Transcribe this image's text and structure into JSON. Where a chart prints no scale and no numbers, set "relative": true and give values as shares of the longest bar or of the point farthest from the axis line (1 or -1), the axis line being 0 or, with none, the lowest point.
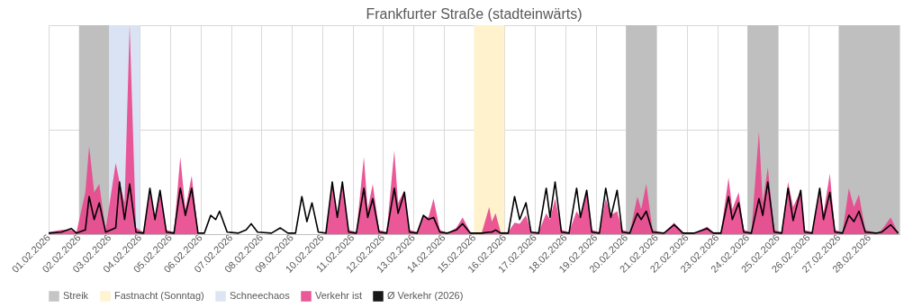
{
  "chart_data": {
    "type": "area",
    "title": "Frankfurter Straße (stadteinwärts)",
    "relative": true,
    "grid": true,
    "legend": "bottom",
    "xlim": [
      "2026-02-01",
      "2026-03-01"
    ],
    "xticks": [
      {
        "value": "2026-02-01",
        "label": "01.02.2026"
      },
      {
        "value": "2026-02-02",
        "label": "02.02.2026"
      },
      {
        "value": "2026-02-03",
        "label": "03.02.2026"
      },
      {
        "value": "2026-02-04",
        "label": "04.02.2026"
      },
      {
        "value": "2026-02-05",
        "label": "05.02.2026"
      },
      {
        "value": "2026-02-06",
        "label": "06.02.2026"
      },
      {
        "value": "2026-02-07",
        "label": "07.02.2026"
      },
      {
        "value": "2026-02-08",
        "label": "08.02.2026"
      },
      {
        "value": "2026-02-09",
        "label": "09.02.2026"
      },
      {
        "value": "2026-02-10",
        "label": "10.02.2026"
      },
      {
        "value": "2026-02-11",
        "label": "11.02.2026"
      },
      {
        "value": "2026-02-12",
        "label": "12.02.2026"
      },
      {
        "value": "2026-02-13",
        "label": "13.02.2026"
      },
      {
        "value": "2026-02-14",
        "label": "14.02.2026"
      },
      {
        "value": "2026-02-15",
        "label": "15.02.2026"
      },
      {
        "value": "2026-02-16",
        "label": "16.02.2026"
      },
      {
        "value": "2026-02-17",
        "label": "17.02.2026"
      },
      {
        "value": "2026-02-18",
        "label": "18.02.2026"
      },
      {
        "value": "2026-02-19",
        "label": "19.02.2026"
      },
      {
        "value": "2026-02-20",
        "label": "20.02.2026"
      },
      {
        "value": "2026-02-21",
        "label": "21.02.2026"
      },
      {
        "value": "2026-02-22",
        "label": "22.02.2026"
      },
      {
        "value": "2026-02-23",
        "label": "23.02.2026"
      },
      {
        "value": "2026-02-24",
        "label": "24.02.2026"
      },
      {
        "value": "2026-02-25",
        "label": "25.02.2026"
      },
      {
        "value": "2026-02-26",
        "label": "26.02.2026"
      },
      {
        "value": "2026-02-27",
        "label": "27.02.2026"
      },
      {
        "value": "2026-02-28",
        "label": "28.02.2026"
      }
    ],
    "bands": [
      {
        "axis": "x",
        "from": "2026-02-02",
        "to": "2026-02-03",
        "label": "Streik",
        "color": "#bfbfbf"
      },
      {
        "axis": "x",
        "from": "2026-02-15",
        "to": "2026-02-16",
        "label": "Fastnacht (Sonntag)",
        "color": "#fff2cc"
      },
      {
        "axis": "x",
        "from": "2026-02-03",
        "to": "2026-02-04",
        "label": "Schneechaos",
        "color": "#dae3f3"
      },
      {
        "axis": "x",
        "from": "2026-02-20",
        "to": "2026-02-21",
        "color": "#bfbfbf"
      },
      {
        "axis": "x",
        "from": "2026-02-24",
        "to": "2026-02-25",
        "color": "#bfbfbf"
      },
      {
        "axis": "x",
        "from": "2026-02-27",
        "to": "2026-03-01",
        "color": "#bfbfbf"
      }
    ],
    "x": [
      "2026-02-01T00:00",
      "2026-02-01T10:00",
      "2026-02-01T18:00",
      "2026-02-01T22:00",
      "2026-02-02T05:00",
      "2026-02-02T08:00",
      "2026-02-02T12:00",
      "2026-02-02T16:00",
      "2026-02-02T21:00",
      "2026-02-03T05:00",
      "2026-02-03T08:00",
      "2026-02-03T12:00",
      "2026-02-03T16:00",
      "2026-02-03T21:00",
      "2026-02-04T03:00",
      "2026-02-04T08:00",
      "2026-02-04T12:00",
      "2026-02-04T16:00",
      "2026-02-04T21:00",
      "2026-02-05T03:00",
      "2026-02-05T08:00",
      "2026-02-05T12:00",
      "2026-02-05T17:00",
      "2026-02-05T22:00",
      "2026-02-06T03:00",
      "2026-02-06T08:00",
      "2026-02-06T12:00",
      "2026-02-06T15:00",
      "2026-02-06T21:00",
      "2026-02-07T06:00",
      "2026-02-07T12:00",
      "2026-02-07T16:00",
      "2026-02-07T21:00",
      "2026-02-08T08:00",
      "2026-02-08T15:00",
      "2026-02-08T21:00",
      "2026-02-09T03:00",
      "2026-02-09T08:00",
      "2026-02-09T12:00",
      "2026-02-09T16:00",
      "2026-02-09T21:00",
      "2026-02-10T03:00",
      "2026-02-10T08:00",
      "2026-02-10T12:00",
      "2026-02-10T16:00",
      "2026-02-10T21:00",
      "2026-02-11T03:00",
      "2026-02-11T09:00",
      "2026-02-11T12:00",
      "2026-02-11T16:00",
      "2026-02-11T21:00",
      "2026-02-12T03:00",
      "2026-02-12T09:00",
      "2026-02-12T12:00",
      "2026-02-12T17:00",
      "2026-02-12T21:00",
      "2026-02-13T03:00",
      "2026-02-13T08:00",
      "2026-02-13T12:00",
      "2026-02-13T16:00",
      "2026-02-13T21:00",
      "2026-02-14T03:00",
      "2026-02-14T10:00",
      "2026-02-14T15:00",
      "2026-02-14T21:00",
      "2026-02-15T06:00",
      "2026-02-15T12:00",
      "2026-02-15T14:00",
      "2026-02-15T17:00",
      "2026-02-15T21:00",
      "2026-02-16T03:00",
      "2026-02-16T08:00",
      "2026-02-16T12:00",
      "2026-02-16T17:00",
      "2026-02-16T21:00",
      "2026-02-17T03:00",
      "2026-02-17T09:00",
      "2026-02-17T12:00",
      "2026-02-17T16:00",
      "2026-02-17T21:00",
      "2026-02-18T03:00",
      "2026-02-18T09:00",
      "2026-02-18T12:00",
      "2026-02-18T17:00",
      "2026-02-18T21:00",
      "2026-02-19T03:00",
      "2026-02-19T08:00",
      "2026-02-19T12:00",
      "2026-02-19T17:00",
      "2026-02-19T21:00",
      "2026-02-20T03:00",
      "2026-02-20T09:00",
      "2026-02-20T12:00",
      "2026-02-20T16:00",
      "2026-02-20T21:00",
      "2026-02-21T06:00",
      "2026-02-21T14:00",
      "2026-02-21T21:00",
      "2026-02-22T06:00",
      "2026-02-22T16:00",
      "2026-02-22T21:00",
      "2026-02-23T03:00",
      "2026-02-23T09:00",
      "2026-02-23T12:00",
      "2026-02-23T17:00",
      "2026-02-23T21:00",
      "2026-02-24T03:00",
      "2026-02-24T09:00",
      "2026-02-24T12:00",
      "2026-02-24T16:00",
      "2026-02-24T21:00",
      "2026-02-25T03:00",
      "2026-02-25T08:00",
      "2026-02-25T12:00",
      "2026-02-25T18:00",
      "2026-02-25T21:00",
      "2026-02-26T03:00",
      "2026-02-26T09:00",
      "2026-02-26T12:00",
      "2026-02-26T17:00",
      "2026-02-26T21:00",
      "2026-02-27T03:00",
      "2026-02-27T08:00",
      "2026-02-27T12:00",
      "2026-02-27T16:00",
      "2026-02-27T21:00",
      "2026-02-28T06:00",
      "2026-02-28T10:00",
      "2026-02-28T17:00",
      "2026-02-28T23:00"
    ],
    "series": [
      {
        "name": "Verkehr ist",
        "color": "#e8468c",
        "values": [
          0.01,
          0.02,
          0.02,
          0.01,
          0.2,
          0.42,
          0.2,
          0.24,
          0.02,
          0.34,
          0.25,
          0.15,
          1.0,
          0.03,
          0.01,
          0.22,
          0.08,
          0.21,
          0.02,
          0.01,
          0.37,
          0.12,
          0.28,
          0.01,
          null,
          null,
          null,
          null,
          null,
          null,
          null,
          null,
          null,
          null,
          null,
          null,
          null,
          null,
          null,
          null,
          null,
          0.01,
          0.25,
          0.09,
          0.25,
          0.02,
          0.01,
          0.37,
          0.12,
          0.24,
          0.02,
          0.01,
          0.4,
          0.15,
          0.21,
          0.02,
          0.01,
          0.09,
          0.08,
          0.17,
          0.02,
          0.005,
          0.03,
          0.08,
          0.01,
          0.005,
          0.13,
          0.06,
          0.1,
          0.01,
          0.01,
          0.055,
          0.05,
          0.09,
          0.01,
          0.01,
          0.1,
          0.07,
          0.17,
          0.02,
          0.01,
          0.11,
          0.08,
          0.21,
          0.02,
          0.01,
          0.17,
          0.09,
          0.11,
          0.02,
          0.01,
          0.18,
          0.12,
          0.24,
          0.02,
          0.005,
          0.055,
          0.01,
          0.005,
          0.036,
          0.01,
          0.01,
          0.27,
          0.12,
          0.2,
          0.02,
          0.01,
          0.49,
          0.15,
          0.32,
          0.02,
          0.01,
          0.25,
          0.13,
          0.21,
          0.02,
          0.01,
          0.22,
          0.1,
          0.29,
          0.02,
          0.01,
          0.22,
          0.13,
          0.19,
          0.02,
          0.005,
          0.02,
          0.08,
          0.005
        ]
      },
      {
        "name": "Ø Verkehr (2026)",
        "type": "line",
        "color": "#000000",
        "values": [
          0.005,
          0.01,
          0.027,
          0.005,
          0.02,
          0.18,
          0.07,
          0.15,
          0.01,
          0.03,
          0.25,
          0.07,
          0.24,
          0.01,
          0.005,
          0.22,
          0.07,
          0.21,
          0.01,
          0.005,
          0.22,
          0.09,
          0.22,
          0.005,
          0.005,
          0.09,
          0.07,
          0.11,
          0.01,
          0.005,
          0.02,
          0.05,
          0.01,
          0.005,
          0.03,
          0.005,
          0.005,
          0.18,
          0.06,
          0.15,
          0.01,
          0.005,
          0.25,
          0.08,
          0.25,
          0.01,
          0.005,
          0.22,
          0.08,
          0.17,
          0.01,
          0.005,
          0.22,
          0.1,
          0.2,
          0.01,
          0.005,
          0.09,
          0.07,
          0.08,
          0.01,
          0.005,
          0.02,
          0.05,
          0.005,
          0.005,
          0.01,
          0.01,
          0.02,
          0.005,
          0.005,
          0.18,
          0.07,
          0.15,
          0.01,
          0.005,
          0.22,
          0.08,
          0.25,
          0.01,
          0.005,
          0.22,
          0.08,
          0.21,
          0.01,
          0.005,
          0.22,
          0.08,
          0.21,
          0.01,
          0.005,
          0.1,
          0.07,
          0.11,
          0.01,
          0.005,
          0.045,
          0.005,
          0.005,
          0.027,
          0.005,
          0.005,
          0.18,
          0.07,
          0.15,
          0.01,
          0.005,
          0.17,
          0.09,
          0.25,
          0.01,
          0.005,
          0.22,
          0.065,
          0.21,
          0.01,
          0.005,
          0.22,
          0.07,
          0.2,
          0.01,
          0.005,
          0.09,
          0.06,
          0.11,
          0.01,
          0.005,
          0.01,
          0.045,
          0.005
        ]
      }
    ]
  }
}
